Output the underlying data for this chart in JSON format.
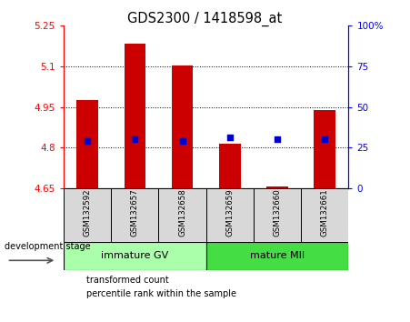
{
  "title": "GDS2300 / 1418598_at",
  "samples": [
    "GSM132592",
    "GSM132657",
    "GSM132658",
    "GSM132659",
    "GSM132660",
    "GSM132661"
  ],
  "bar_values": [
    4.975,
    5.185,
    5.105,
    4.815,
    4.658,
    4.94
  ],
  "bar_bottom": 4.65,
  "percentile_values": [
    4.824,
    4.832,
    4.824,
    4.838,
    4.832,
    4.832
  ],
  "ylim_left": [
    4.65,
    5.25
  ],
  "ylim_right": [
    0,
    100
  ],
  "yticks_left": [
    4.65,
    4.8,
    4.95,
    5.1,
    5.25
  ],
  "ytick_labels_left": [
    "4.65",
    "4.8",
    "4.95",
    "5.1",
    "5.25"
  ],
  "yticks_right": [
    0,
    25,
    50,
    75,
    100
  ],
  "ytick_labels_right": [
    "0",
    "25",
    "50",
    "75",
    "100%"
  ],
  "hlines": [
    4.8,
    4.95,
    5.1
  ],
  "bar_color": "#cc0000",
  "dot_color": "#0000cc",
  "group1_label": "immature GV",
  "group2_label": "mature MII",
  "group1_color": "#aaffaa",
  "group2_color": "#44dd44",
  "legend_bar_label": "transformed count",
  "legend_dot_label": "percentile rank within the sample",
  "sample_bg_color": "#d8d8d8",
  "plot_bg": "#ffffff",
  "bar_width": 0.45
}
